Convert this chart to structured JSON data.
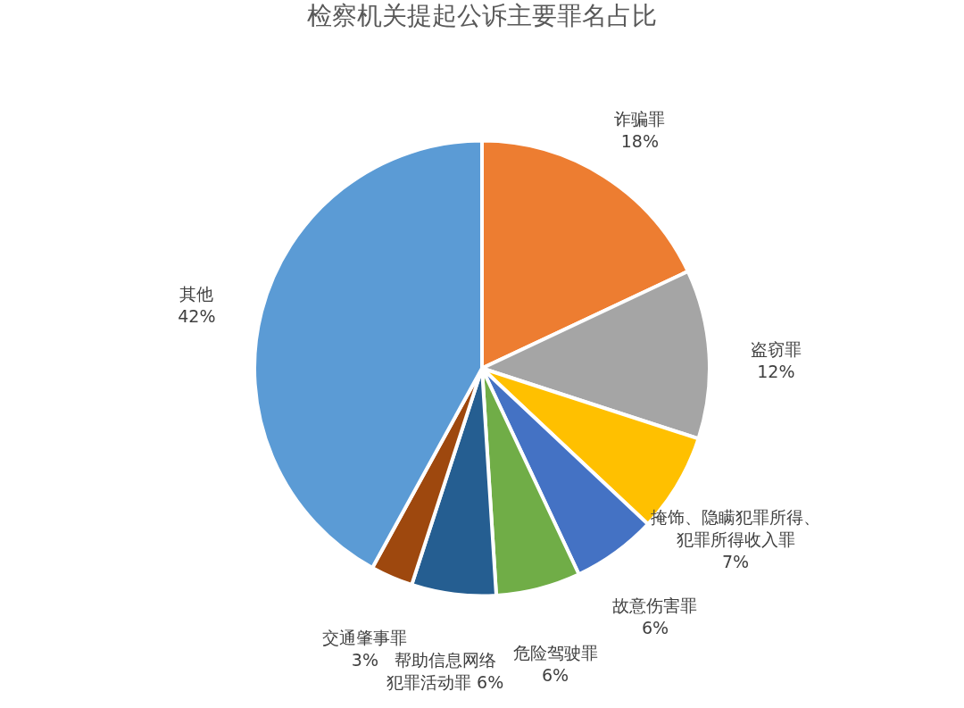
{
  "chart_data": {
    "type": "pie",
    "title": "检察机关提起公诉主要罪名占比",
    "categories": [
      "诈骗罪",
      "盗窃罪",
      "掩饰、隐瞒犯罪所得、犯罪所得收入罪",
      "故意伤害罪",
      "危险驾驶罪",
      "帮助信息网络犯罪活动罪",
      "交通肇事罪",
      "其他"
    ],
    "values": [
      18,
      12,
      7,
      6,
      6,
      6,
      3,
      42
    ],
    "value_labels": [
      "18%",
      "12%",
      "7%",
      "6%",
      "6%",
      "6%",
      "3%",
      "42%"
    ],
    "colors": [
      "#ed7d31",
      "#a5a5a5",
      "#ffc000",
      "#4472c4",
      "#70ad47",
      "#255e91",
      "#9e480e",
      "#5b9bd5"
    ],
    "legend": false
  }
}
